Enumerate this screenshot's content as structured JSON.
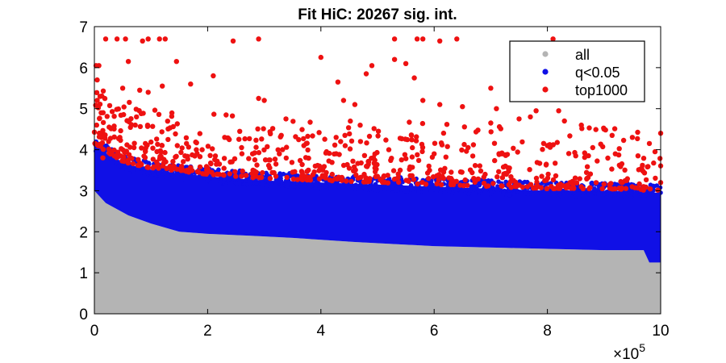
{
  "chart_data": {
    "type": "scatter",
    "title": "Fit HiC: 20267 sig. int.",
    "xlabel": "",
    "ylabel": "",
    "x_exponent_label": "×10",
    "x_exponent": "5",
    "xlim": [
      0,
      1000000
    ],
    "ylim": [
      0,
      7
    ],
    "xticks": [
      0,
      200000,
      400000,
      600000,
      800000,
      1000000
    ],
    "xtick_labels": [
      "0",
      "2",
      "4",
      "6",
      "8",
      "10"
    ],
    "yticks": [
      0,
      1,
      2,
      3,
      4,
      5,
      6,
      7
    ],
    "ytick_labels": [
      "0",
      "1",
      "2",
      "3",
      "4",
      "5",
      "6",
      "7"
    ],
    "grid": false,
    "legend_position": "top-right",
    "series": [
      {
        "name": "all",
        "color": "#b4b4b4",
        "envelope": [
          [
            0,
            3.0
          ],
          [
            20000,
            2.7
          ],
          [
            40000,
            2.55
          ],
          [
            60000,
            2.4
          ],
          [
            80000,
            2.3
          ],
          [
            100000,
            2.2
          ],
          [
            150000,
            2.0
          ],
          [
            200000,
            1.95
          ],
          [
            280000,
            1.9
          ],
          [
            350000,
            1.85
          ],
          [
            460000,
            1.75
          ],
          [
            600000,
            1.65
          ],
          [
            750000,
            1.6
          ],
          [
            900000,
            1.55
          ],
          [
            970000,
            1.55
          ],
          [
            990000,
            1.3
          ],
          [
            1000000,
            1.3
          ]
        ]
      },
      {
        "name": "q<0.05",
        "color": "#1010e6",
        "lower_bound": [
          [
            0,
            3.0
          ],
          [
            20000,
            2.7
          ],
          [
            60000,
            2.4
          ],
          [
            100000,
            2.2
          ],
          [
            150000,
            2.0
          ],
          [
            200000,
            1.95
          ],
          [
            280000,
            1.9
          ],
          [
            350000,
            1.85
          ],
          [
            460000,
            1.75
          ],
          [
            600000,
            1.65
          ],
          [
            750000,
            1.6
          ],
          [
            900000,
            1.55
          ],
          [
            970000,
            1.55
          ],
          [
            980000,
            1.25
          ],
          [
            1000000,
            1.25
          ]
        ],
        "upper_bound": [
          [
            0,
            4.1
          ],
          [
            50000,
            3.65
          ],
          [
            100000,
            3.5
          ],
          [
            200000,
            3.35
          ],
          [
            300000,
            3.25
          ],
          [
            400000,
            3.2
          ],
          [
            500000,
            3.15
          ],
          [
            600000,
            3.1
          ],
          [
            700000,
            3.05
          ],
          [
            800000,
            3.0
          ],
          [
            900000,
            3.0
          ],
          [
            1000000,
            2.95
          ]
        ]
      },
      {
        "name": "top1000",
        "color": "#ee1111",
        "points": [
          [
            3000,
            6.05
          ],
          [
            8000,
            6.05
          ],
          [
            5000,
            5.7
          ],
          [
            10000,
            5.3
          ],
          [
            5000,
            5.2
          ],
          [
            12000,
            4.9
          ],
          [
            4000,
            4.6
          ],
          [
            15000,
            4.4
          ],
          [
            20000,
            6.7
          ],
          [
            40000,
            6.7
          ],
          [
            55000,
            6.7
          ],
          [
            85000,
            6.65
          ],
          [
            95000,
            6.7
          ],
          [
            115000,
            6.7
          ],
          [
            125000,
            6.7
          ],
          [
            245000,
            6.65
          ],
          [
            290000,
            6.7
          ],
          [
            530000,
            6.7
          ],
          [
            570000,
            6.7
          ],
          [
            580000,
            6.7
          ],
          [
            610000,
            6.65
          ],
          [
            640000,
            6.7
          ],
          [
            810000,
            6.7
          ],
          [
            60000,
            6.15
          ],
          [
            145000,
            6.15
          ],
          [
            400000,
            6.25
          ],
          [
            490000,
            6.05
          ],
          [
            530000,
            6.2
          ],
          [
            550000,
            6.1
          ],
          [
            480000,
            5.85
          ],
          [
            565000,
            5.75
          ],
          [
            210000,
            5.8
          ],
          [
            170000,
            5.6
          ],
          [
            120000,
            5.55
          ],
          [
            50000,
            5.5
          ],
          [
            80000,
            5.45
          ],
          [
            95000,
            5.4
          ],
          [
            430000,
            5.65
          ],
          [
            700000,
            5.5
          ],
          [
            710000,
            5.0
          ],
          [
            780000,
            4.95
          ],
          [
            820000,
            4.95
          ],
          [
            290000,
            5.25
          ],
          [
            300000,
            5.2
          ],
          [
            440000,
            5.2
          ],
          [
            460000,
            5.1
          ],
          [
            580000,
            5.2
          ],
          [
            610000,
            5.1
          ],
          [
            650000,
            5.05
          ],
          [
            700000,
            4.65
          ],
          [
            750000,
            4.75
          ],
          [
            770000,
            4.8
          ],
          [
            830000,
            4.7
          ],
          [
            860000,
            4.6
          ],
          [
            900000,
            4.5
          ],
          [
            950000,
            4.3
          ],
          [
            1000000,
            4.4
          ],
          [
            980000,
            4.15
          ],
          [
            10000,
            4.1
          ],
          [
            25000,
            4.2
          ],
          [
            45000,
            4.3
          ],
          [
            70000,
            4.05
          ],
          [
            90000,
            4.15
          ],
          [
            130000,
            4.25
          ],
          [
            180000,
            4.0
          ],
          [
            230000,
            4.3
          ],
          [
            260000,
            4.05
          ],
          [
            330000,
            4.35
          ],
          [
            370000,
            4.1
          ],
          [
            410000,
            3.95
          ],
          [
            470000,
            4.2
          ],
          [
            520000,
            4.0
          ],
          [
            560000,
            4.35
          ],
          [
            600000,
            3.9
          ],
          [
            660000,
            4.05
          ],
          [
            720000,
            3.9
          ],
          [
            800000,
            4.1
          ],
          [
            850000,
            3.85
          ],
          [
            880000,
            4.05
          ],
          [
            920000,
            3.9
          ],
          [
            960000,
            3.85
          ],
          [
            990000,
            3.95
          ],
          [
            15000,
            3.8
          ],
          [
            35000,
            3.85
          ],
          [
            60000,
            3.75
          ],
          [
            110000,
            3.7
          ],
          [
            140000,
            3.6
          ],
          [
            160000,
            3.85
          ],
          [
            200000,
            3.55
          ],
          [
            240000,
            3.7
          ],
          [
            280000,
            3.5
          ],
          [
            310000,
            3.75
          ],
          [
            350000,
            3.45
          ],
          [
            390000,
            3.6
          ],
          [
            420000,
            3.4
          ],
          [
            450000,
            3.55
          ],
          [
            500000,
            3.35
          ],
          [
            540000,
            3.5
          ],
          [
            590000,
            3.3
          ],
          [
            630000,
            3.45
          ],
          [
            670000,
            3.3
          ],
          [
            690000,
            3.4
          ],
          [
            740000,
            3.25
          ],
          [
            790000,
            3.35
          ],
          [
            840000,
            3.2
          ],
          [
            870000,
            3.3
          ],
          [
            910000,
            3.15
          ],
          [
            940000,
            3.25
          ],
          [
            970000,
            3.1
          ],
          [
            1000000,
            3.2
          ]
        ]
      }
    ]
  }
}
